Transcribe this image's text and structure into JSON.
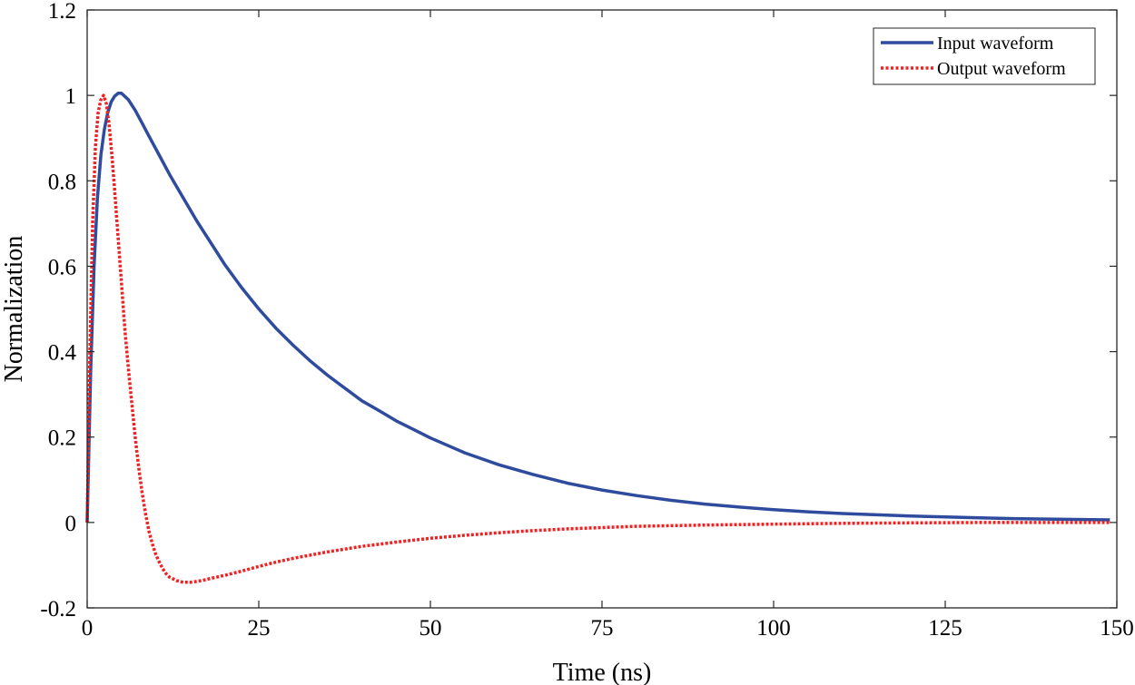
{
  "chart_data": {
    "type": "line",
    "title": "",
    "xlabel": "Time (ns)",
    "ylabel": "Normalization",
    "xlim": [
      0,
      150
    ],
    "ylim": [
      -0.2,
      1.2
    ],
    "xticks": [
      0,
      25,
      50,
      75,
      100,
      125,
      150
    ],
    "yticks": [
      -0.2,
      0,
      0.2,
      0.4,
      0.6,
      0.8,
      1,
      1.2
    ],
    "xtick_labels": [
      "0",
      "25",
      "50",
      "75",
      "100",
      "125",
      "150"
    ],
    "ytick_labels": [
      "-0.2",
      "0",
      "0.2",
      "0.4",
      "0.6",
      "0.8",
      "1",
      "1.2"
    ],
    "grid": false,
    "legend": {
      "position": "top-right"
    },
    "series": [
      {
        "name": "Input waveform",
        "color": "#2e4b9e",
        "style": "solid",
        "x": [
          0,
          0.5,
          1,
          1.5,
          2,
          2.5,
          3,
          3.5,
          4,
          4.5,
          5,
          6,
          7,
          8,
          9,
          10,
          12,
          14,
          16,
          18,
          20,
          22.5,
          25,
          27.5,
          30,
          32.5,
          35,
          37.5,
          40,
          42.5,
          45,
          47.5,
          50,
          55,
          60,
          65,
          70,
          75,
          80,
          85,
          90,
          95,
          100,
          105,
          110,
          115,
          120,
          125,
          130,
          135,
          140,
          145,
          149
        ],
        "y": [
          0,
          0.35,
          0.6,
          0.76,
          0.86,
          0.92,
          0.96,
          0.985,
          0.998,
          1.005,
          1.005,
          0.99,
          0.965,
          0.935,
          0.905,
          0.875,
          0.815,
          0.76,
          0.705,
          0.655,
          0.605,
          0.55,
          0.5,
          0.455,
          0.415,
          0.378,
          0.345,
          0.315,
          0.285,
          0.262,
          0.238,
          0.218,
          0.198,
          0.163,
          0.135,
          0.112,
          0.092,
          0.076,
          0.063,
          0.052,
          0.043,
          0.036,
          0.03,
          0.025,
          0.021,
          0.018,
          0.015,
          0.013,
          0.011,
          0.009,
          0.008,
          0.007,
          0.006
        ]
      },
      {
        "name": "Output waveform",
        "color": "#ee2222",
        "style": "dotted",
        "x": [
          0,
          0.4,
          0.8,
          1.2,
          1.6,
          2,
          2.4,
          2.8,
          3.2,
          3.6,
          4,
          4.5,
          5,
          5.5,
          6,
          6.5,
          7,
          7.5,
          8,
          8.5,
          9,
          9.5,
          10,
          10.5,
          11,
          11.5,
          12,
          13,
          14,
          15,
          16,
          17,
          18,
          20,
          22.5,
          25,
          27.5,
          30,
          35,
          40,
          45,
          50,
          55,
          60,
          65,
          70,
          75,
          80,
          90,
          100,
          110,
          120,
          130,
          140,
          149
        ],
        "y": [
          0,
          0.4,
          0.7,
          0.88,
          0.96,
          0.99,
          1.0,
          0.98,
          0.93,
          0.86,
          0.78,
          0.67,
          0.56,
          0.45,
          0.36,
          0.28,
          0.2,
          0.13,
          0.07,
          0.02,
          -0.02,
          -0.05,
          -0.075,
          -0.093,
          -0.108,
          -0.12,
          -0.128,
          -0.136,
          -0.14,
          -0.14,
          -0.138,
          -0.135,
          -0.131,
          -0.124,
          -0.114,
          -0.103,
          -0.093,
          -0.084,
          -0.069,
          -0.056,
          -0.046,
          -0.037,
          -0.03,
          -0.024,
          -0.019,
          -0.015,
          -0.012,
          -0.009,
          -0.006,
          -0.004,
          -0.002,
          -0.001,
          0,
          0,
          0
        ]
      }
    ]
  }
}
